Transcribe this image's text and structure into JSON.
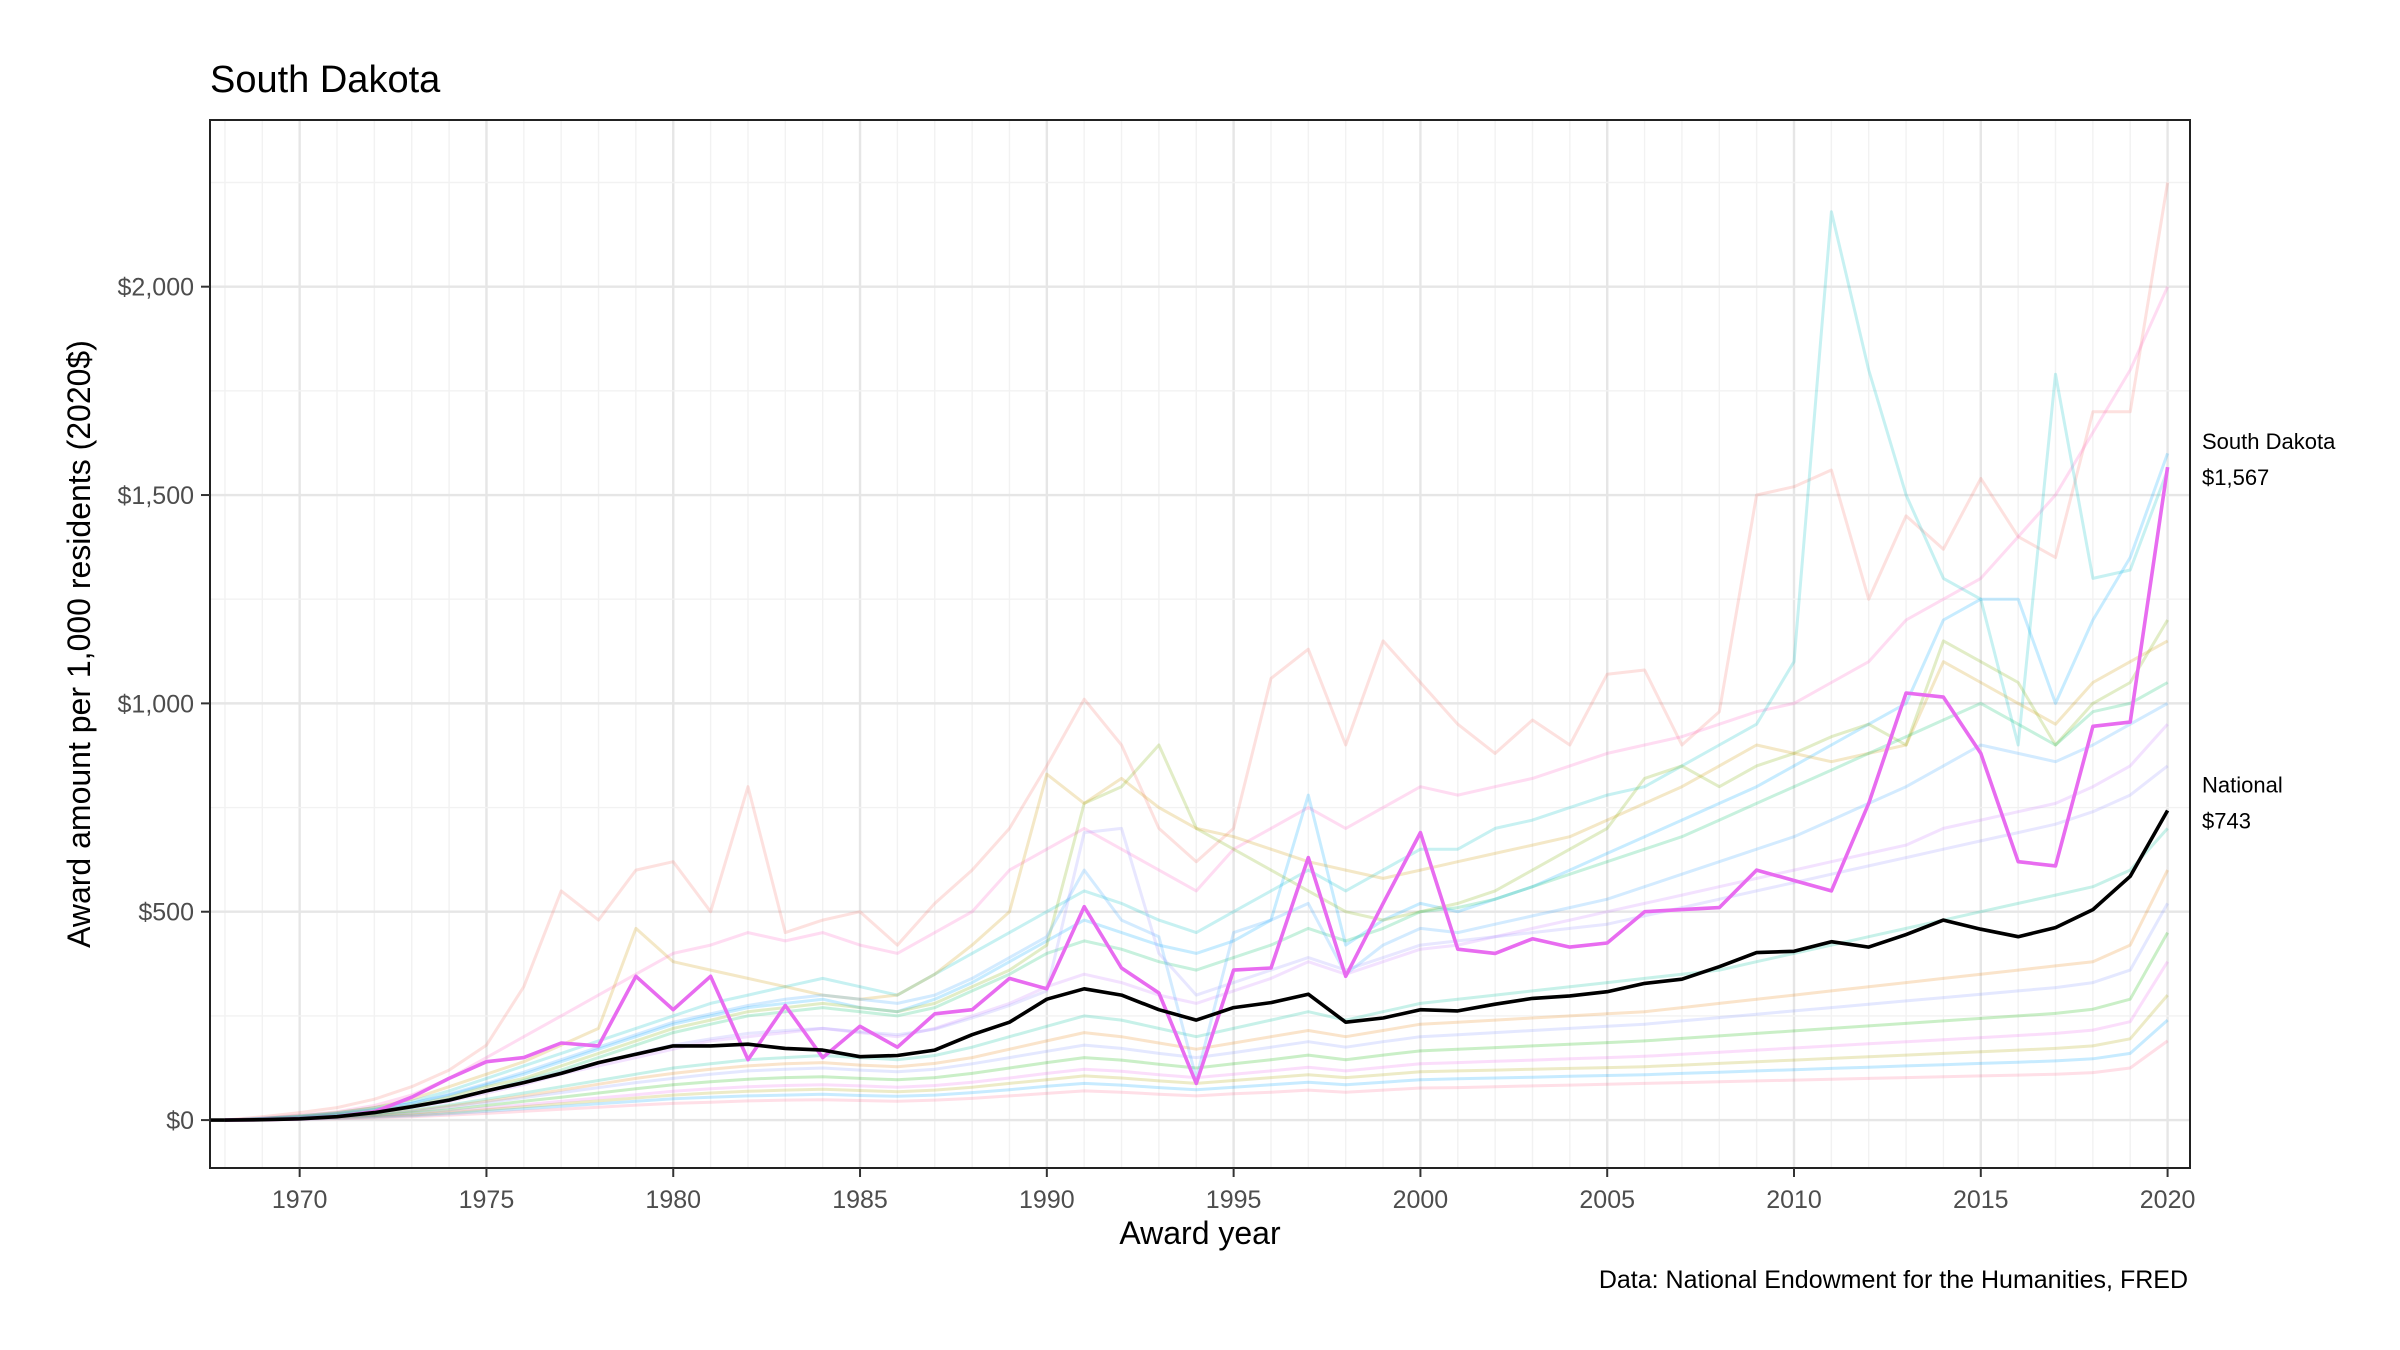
{
  "chart_data": {
    "type": "line",
    "title": "South Dakota",
    "xlabel": "Award year",
    "ylabel": "Award amount per 1,000 residents (2020$)",
    "caption": "Data: National Endowment for the Humanities, FRED",
    "xlim": [
      1967.6,
      2020.6
    ],
    "ylim": [
      -115,
      2400
    ],
    "x_ticks": [
      1970,
      1975,
      1980,
      1985,
      1990,
      1995,
      2000,
      2005,
      2010,
      2015,
      2020
    ],
    "x_tick_labels": [
      "1970",
      "1975",
      "1980",
      "1985",
      "1990",
      "1995",
      "2000",
      "2005",
      "2010",
      "2015",
      "2020"
    ],
    "y_ticks": [
      0,
      500,
      1000,
      1500,
      2000
    ],
    "y_tick_labels": [
      "$0",
      "$500",
      "$1,000",
      "$1,500",
      "$2,000"
    ],
    "grid": true,
    "years": [
      1968,
      1969,
      1970,
      1971,
      1972,
      1973,
      1974,
      1975,
      1976,
      1977,
      1978,
      1979,
      1980,
      1981,
      1982,
      1983,
      1984,
      1985,
      1986,
      1987,
      1988,
      1989,
      1990,
      1991,
      1992,
      1993,
      1994,
      1995,
      1996,
      1997,
      1998,
      1999,
      2000,
      2001,
      2002,
      2003,
      2004,
      2005,
      2006,
      2007,
      2008,
      2009,
      2010,
      2011,
      2012,
      2013,
      2014,
      2015,
      2016,
      2017,
      2018,
      2019,
      2020
    ],
    "highlight": [
      {
        "label": "South Dakota",
        "value_label": "$1,567",
        "color": "#e86cf0",
        "values": [
          0,
          1,
          3,
          8,
          20,
          55,
          100,
          140,
          150,
          185,
          178,
          345,
          265,
          345,
          145,
          275,
          150,
          225,
          175,
          255,
          265,
          340,
          315,
          512,
          365,
          305,
          88,
          360,
          365,
          630,
          345,
          520,
          690,
          410,
          400,
          435,
          415,
          425,
          500,
          505,
          510,
          600,
          575,
          550,
          760,
          1025,
          1015,
          880,
          620,
          610,
          945,
          955,
          1567
        ]
      },
      {
        "label": "National",
        "value_label": "$743",
        "color": "#000000",
        "values": [
          0,
          1,
          3,
          8,
          18,
          32,
          48,
          70,
          90,
          112,
          138,
          158,
          178,
          178,
          182,
          172,
          168,
          152,
          155,
          168,
          205,
          235,
          290,
          315,
          300,
          265,
          240,
          270,
          282,
          302,
          235,
          245,
          265,
          262,
          278,
          292,
          298,
          308,
          328,
          338,
          368,
          402,
          405,
          428,
          415,
          445,
          480,
          458,
          440,
          462,
          505,
          585,
          743
        ]
      }
    ],
    "background_series": [
      {
        "color": "#f8766d",
        "values": [
          0,
          8,
          18,
          30,
          50,
          80,
          120,
          180,
          320,
          550,
          480,
          600,
          620,
          500,
          800,
          450,
          480,
          500,
          420,
          520,
          600,
          700,
          850,
          1010,
          900,
          700,
          620,
          700,
          1060,
          1130,
          900,
          1150,
          1050,
          950,
          880,
          960,
          900,
          1070,
          1080,
          900,
          980,
          1500,
          1520,
          1560,
          1250,
          1450,
          1370,
          1540,
          1400,
          1350,
          1700,
          1700,
          2250
        ]
      },
      {
        "color": "#ff61c3",
        "values": [
          0,
          5,
          12,
          20,
          35,
          60,
          100,
          150,
          200,
          250,
          300,
          350,
          400,
          420,
          450,
          430,
          450,
          420,
          400,
          450,
          500,
          600,
          650,
          700,
          650,
          600,
          550,
          650,
          700,
          750,
          700,
          750,
          800,
          780,
          800,
          820,
          850,
          880,
          900,
          920,
          950,
          980,
          1000,
          1050,
          1100,
          1200,
          1250,
          1300,
          1400,
          1500,
          1650,
          1800,
          2000
        ]
      },
      {
        "color": "#00bfc4",
        "values": [
          0,
          4,
          10,
          18,
          30,
          45,
          70,
          100,
          130,
          160,
          190,
          220,
          250,
          280,
          300,
          320,
          340,
          320,
          300,
          350,
          400,
          450,
          500,
          550,
          520,
          480,
          450,
          500,
          550,
          600,
          550,
          600,
          650,
          650,
          700,
          720,
          750,
          780,
          800,
          850,
          900,
          950,
          1100,
          2180,
          1800,
          1500,
          1300,
          1250,
          900,
          1790,
          1300,
          1320,
          1560
        ]
      },
      {
        "color": "#00a9ff",
        "values": [
          0,
          3,
          8,
          15,
          25,
          40,
          60,
          85,
          110,
          140,
          170,
          200,
          230,
          250,
          270,
          280,
          290,
          270,
          260,
          290,
          330,
          380,
          430,
          480,
          450,
          420,
          400,
          430,
          480,
          780,
          420,
          480,
          520,
          500,
          530,
          560,
          600,
          640,
          680,
          720,
          760,
          800,
          850,
          900,
          950,
          1000,
          1200,
          1250,
          1250,
          1000,
          1200,
          1350,
          1600
        ]
      },
      {
        "color": "#7cae00",
        "values": [
          0,
          3,
          8,
          14,
          22,
          35,
          55,
          80,
          100,
          130,
          160,
          190,
          220,
          240,
          260,
          270,
          280,
          270,
          260,
          280,
          320,
          360,
          420,
          760,
          800,
          900,
          700,
          650,
          600,
          550,
          500,
          480,
          500,
          520,
          550,
          600,
          650,
          700,
          820,
          850,
          800,
          850,
          880,
          920,
          950,
          900,
          1150,
          1100,
          1050,
          900,
          1000,
          1050,
          1200
        ]
      },
      {
        "color": "#cd9600",
        "values": [
          0,
          4,
          10,
          18,
          30,
          50,
          80,
          110,
          140,
          180,
          220,
          460,
          380,
          360,
          340,
          320,
          300,
          290,
          300,
          350,
          420,
          500,
          830,
          760,
          820,
          750,
          700,
          680,
          650,
          620,
          600,
          580,
          600,
          620,
          640,
          660,
          680,
          720,
          760,
          800,
          850,
          900,
          880,
          860,
          880,
          900,
          1100,
          1050,
          1000,
          950,
          1050,
          1100,
          1150
        ]
      },
      {
        "color": "#00be67",
        "values": [
          0,
          3,
          7,
          12,
          20,
          32,
          50,
          70,
          95,
          120,
          150,
          180,
          210,
          230,
          250,
          260,
          270,
          260,
          250,
          270,
          310,
          350,
          400,
          430,
          410,
          380,
          360,
          390,
          420,
          460,
          430,
          460,
          500,
          510,
          530,
          560,
          590,
          620,
          650,
          680,
          720,
          760,
          800,
          840,
          880,
          920,
          960,
          1000,
          950,
          900,
          980,
          1000,
          1050
        ]
      },
      {
        "color": "#c77cff",
        "values": [
          0,
          3,
          6,
          10,
          18,
          30,
          45,
          65,
          85,
          110,
          130,
          150,
          170,
          190,
          200,
          210,
          220,
          210,
          200,
          220,
          250,
          280,
          320,
          350,
          330,
          300,
          280,
          310,
          340,
          380,
          350,
          380,
          410,
          420,
          440,
          460,
          480,
          500,
          520,
          540,
          560,
          580,
          600,
          620,
          640,
          660,
          700,
          720,
          740,
          760,
          800,
          850,
          950
        ]
      },
      {
        "color": "#00c19a",
        "values": [
          0,
          2,
          5,
          9,
          15,
          24,
          36,
          50,
          65,
          80,
          95,
          110,
          125,
          135,
          145,
          150,
          155,
          150,
          145,
          155,
          175,
          200,
          225,
          250,
          240,
          220,
          200,
          220,
          240,
          260,
          240,
          260,
          280,
          290,
          300,
          310,
          320,
          330,
          340,
          350,
          360,
          380,
          400,
          420,
          440,
          460,
          480,
          500,
          520,
          540,
          560,
          600,
          700
        ]
      },
      {
        "color": "#e68613",
        "values": [
          0,
          2,
          5,
          9,
          14,
          22,
          33,
          45,
          58,
          72,
          86,
          100,
          112,
          122,
          130,
          135,
          138,
          132,
          128,
          136,
          150,
          170,
          190,
          210,
          200,
          185,
          170,
          185,
          200,
          215,
          200,
          215,
          230,
          235,
          240,
          245,
          250,
          255,
          260,
          270,
          280,
          290,
          300,
          310,
          320,
          330,
          340,
          350,
          360,
          370,
          380,
          420,
          600
        ]
      },
      {
        "color": "#8494ff",
        "values": [
          0,
          2,
          4,
          8,
          12,
          20,
          30,
          42,
          54,
          66,
          78,
          90,
          100,
          110,
          118,
          122,
          125,
          120,
          116,
          122,
          135,
          150,
          165,
          180,
          172,
          160,
          150,
          162,
          175,
          188,
          175,
          188,
          200,
          205,
          210,
          215,
          220,
          225,
          230,
          238,
          246,
          254,
          262,
          270,
          278,
          286,
          294,
          302,
          310,
          318,
          330,
          360,
          520
        ]
      },
      {
        "color": "#0cb702",
        "values": [
          0,
          2,
          4,
          7,
          11,
          17,
          25,
          35,
          45,
          55,
          65,
          75,
          85,
          92,
          98,
          102,
          104,
          100,
          97,
          102,
          112,
          125,
          138,
          150,
          144,
          134,
          125,
          135,
          145,
          156,
          145,
          156,
          166,
          170,
          174,
          178,
          182,
          186,
          190,
          196,
          202,
          208,
          214,
          220,
          226,
          232,
          238,
          244,
          250,
          256,
          266,
          290,
          450
        ]
      },
      {
        "color": "#ed68ed",
        "values": [
          0,
          1,
          3,
          6,
          9,
          14,
          21,
          29,
          37,
          45,
          53,
          61,
          69,
          75,
          80,
          83,
          85,
          82,
          79,
          83,
          91,
          101,
          112,
          122,
          117,
          109,
          102,
          110,
          118,
          127,
          118,
          127,
          135,
          138,
          141,
          144,
          147,
          150,
          153,
          158,
          163,
          168,
          173,
          178,
          183,
          188,
          193,
          198,
          203,
          208,
          216,
          236,
          380
        ]
      },
      {
        "color": "#aba300",
        "values": [
          0,
          1,
          3,
          5,
          8,
          12,
          18,
          25,
          32,
          39,
          46,
          53,
          60,
          65,
          69,
          72,
          74,
          71,
          68,
          72,
          79,
          88,
          97,
          106,
          101,
          94,
          88,
          95,
          102,
          109,
          102,
          109,
          116,
          118,
          120,
          122,
          124,
          126,
          128,
          132,
          136,
          140,
          144,
          148,
          152,
          156,
          160,
          164,
          168,
          172,
          178,
          195,
          300
        ]
      },
      {
        "color": "#00a5ff",
        "values": [
          0,
          1,
          2,
          4,
          7,
          10,
          15,
          21,
          27,
          33,
          39,
          45,
          51,
          55,
          58,
          60,
          62,
          59,
          57,
          60,
          66,
          73,
          81,
          88,
          84,
          78,
          73,
          79,
          85,
          91,
          85,
          91,
          97,
          99,
          101,
          103,
          105,
          107,
          109,
          112,
          115,
          118,
          121,
          124,
          127,
          130,
          133,
          136,
          139,
          142,
          147,
          160,
          240
        ]
      },
      {
        "color": "#ff6c91",
        "values": [
          0,
          1,
          2,
          3,
          5,
          8,
          12,
          16,
          21,
          26,
          31,
          36,
          40,
          43,
          46,
          48,
          49,
          47,
          45,
          48,
          52,
          58,
          64,
          70,
          67,
          62,
          58,
          63,
          67,
          72,
          67,
          72,
          77,
          78,
          80,
          82,
          84,
          86,
          88,
          90,
          92,
          94,
          96,
          98,
          100,
          102,
          104,
          106,
          108,
          110,
          114,
          125,
          190
        ]
      },
      {
        "color": "#35a2ff",
        "values": [
          0,
          4,
          9,
          16,
          26,
          40,
          62,
          88,
          115,
          145,
          175,
          205,
          235,
          255,
          275,
          290,
          300,
          290,
          280,
          300,
          340,
          390,
          440,
          600,
          480,
          440,
          100,
          450,
          480,
          520,
          350,
          420,
          460,
          450,
          470,
          490,
          510,
          530,
          560,
          590,
          620,
          650,
          680,
          720,
          760,
          800,
          850,
          900,
          880,
          860,
          900,
          950,
          1000
        ]
      },
      {
        "color": "#9590ff",
        "values": [
          0,
          3,
          7,
          13,
          21,
          33,
          50,
          70,
          92,
          115,
          138,
          160,
          180,
          195,
          208,
          215,
          220,
          212,
          205,
          218,
          245,
          275,
          310,
          690,
          700,
          400,
          300,
          330,
          360,
          390,
          360,
          390,
          420,
          430,
          440,
          450,
          460,
          470,
          490,
          510,
          530,
          550,
          570,
          590,
          610,
          630,
          650,
          670,
          690,
          710,
          740,
          780,
          850
        ]
      }
    ]
  }
}
